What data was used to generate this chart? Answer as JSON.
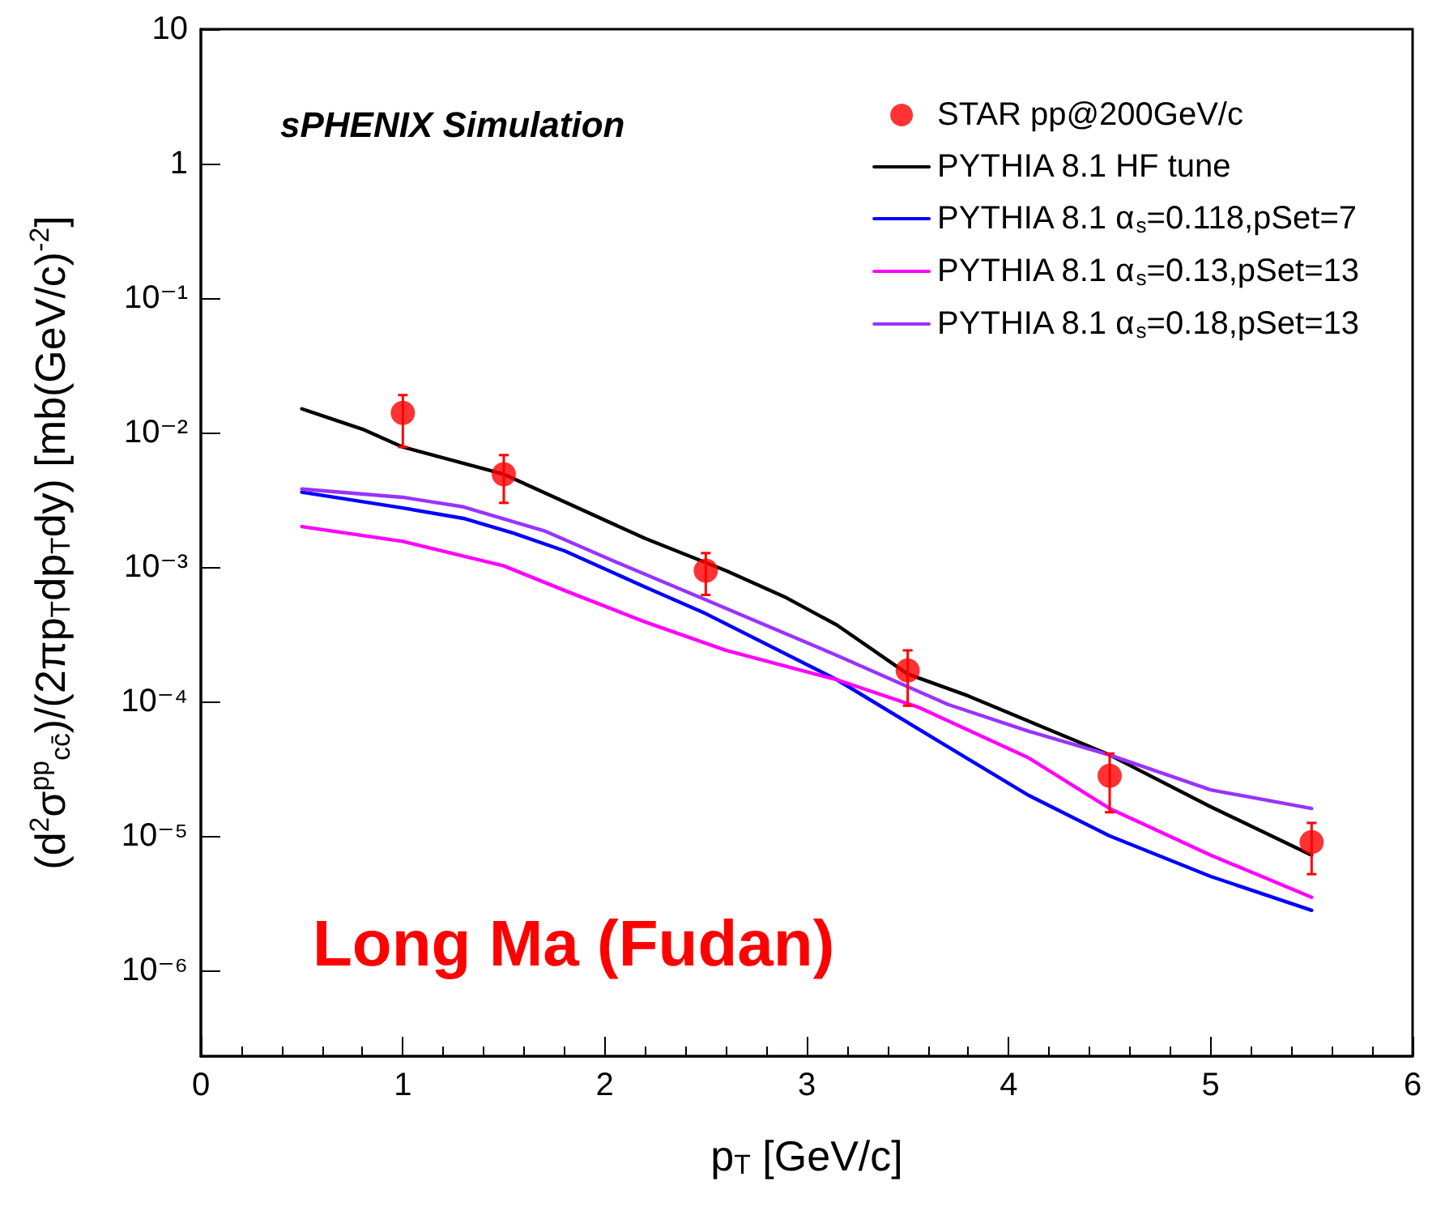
{
  "chart_data": {
    "type": "line",
    "xlabel": "p$_{T}$ [GeV/c]",
    "ylabel": "(d$^{2}$σ$^{pp}$$_{cc̄}$)/(2πp$_{T}$dp$_{T}$dy) [mb(GeV/c)$^{-2}$]",
    "log": "y",
    "xlim": [
      0,
      6
    ],
    "xticks": [
      0,
      1,
      2,
      3,
      4,
      5,
      6
    ],
    "ylim": [
      2.3e-07,
      10
    ],
    "yticks": [
      {
        "value": 1e-06,
        "label": "10⁻⁶"
      },
      {
        "value": 1e-05,
        "label": "10⁻⁵"
      },
      {
        "value": 0.0001,
        "label": "10⁻⁴"
      },
      {
        "value": 0.001,
        "label": "10⁻³"
      },
      {
        "value": 0.01,
        "label": "10⁻²"
      },
      {
        "value": 0.1,
        "label": "10⁻¹"
      },
      1,
      10
    ],
    "grid": false,
    "legend": "top right",
    "annotations": [
      "sPHENIX Simulation",
      "Long Ma (Fudan)"
    ],
    "series": [
      {
        "name": "STAR pp@200GeV/c",
        "type": "scatter",
        "marker": "circle",
        "color": "#ff0000",
        "x": [
          1,
          1.5,
          2.5,
          3.5,
          4.5,
          5.5
        ],
        "values": [
          0.014,
          0.0049,
          0.00094,
          0.00017,
          2.8e-05,
          9e-06
        ],
        "errors": [
          [
            0.0078,
            0.019
          ],
          [
            0.003,
            0.0068
          ],
          [
            0.00062,
            0.00127
          ],
          [
            9.3e-05,
            0.00024
          ],
          [
            1.5e-05,
            4.1e-05
          ],
          [
            5.2e-06,
            1.25e-05
          ]
        ]
      },
      {
        "name": "PYTHIA 8.1 HF tune",
        "color": "#000000",
        "x": [
          0.5,
          0.8,
          1.0,
          1.5,
          2.2,
          2.6,
          2.9,
          3.15,
          3.5,
          3.8,
          4.5,
          5.0,
          5.5
        ],
        "values": [
          0.015,
          0.0106,
          0.0078,
          0.0049,
          0.00163,
          0.00094,
          0.00059,
          0.00037,
          0.00016,
          0.00011,
          4e-05,
          1.65e-05,
          7.2e-06
        ]
      },
      {
        "name": "PYTHIA 8.1 α$_{s}$=0.118,pSet=7",
        "color": "#0000ff",
        "x": [
          0.5,
          1.0,
          1.3,
          1.55,
          1.8,
          2.2,
          2.5,
          3.15,
          3.7,
          4.1,
          4.5,
          4.6,
          5.0,
          5.5
        ],
        "values": [
          0.0036,
          0.00275,
          0.0023,
          0.00178,
          0.00132,
          0.00071,
          0.00045,
          0.000145,
          4.6e-05,
          2e-05,
          1e-05,
          8.7e-06,
          5e-06,
          2.8e-06
        ]
      },
      {
        "name": "PYTHIA 8.1 α$_{s}$=0.13,pSet=13",
        "color": "#ff00ff",
        "x": [
          0.5,
          1.0,
          1.5,
          1.8,
          2.2,
          2.6,
          3.15,
          3.55,
          4.1,
          4.5,
          5.0,
          5.5
        ],
        "values": [
          0.002,
          0.00155,
          0.00102,
          0.00067,
          0.00039,
          0.00024,
          0.000145,
          9.1e-05,
          3.8e-05,
          1.6e-05,
          7.2e-06,
          3.5e-06
        ]
      },
      {
        "name": "PYTHIA 8.1 α$_{s}$=0.18,pSet=13",
        "color": "#9933ff",
        "x": [
          0.5,
          1.0,
          1.3,
          1.7,
          2.1,
          2.5,
          3.15,
          3.7,
          4.1,
          4.5,
          5.0,
          5.5
        ],
        "values": [
          0.0038,
          0.0033,
          0.0028,
          0.00186,
          0.00102,
          0.00057,
          0.00022,
          9.5e-05,
          6e-05,
          4e-05,
          2.2e-05,
          1.6e-05
        ]
      }
    ]
  }
}
